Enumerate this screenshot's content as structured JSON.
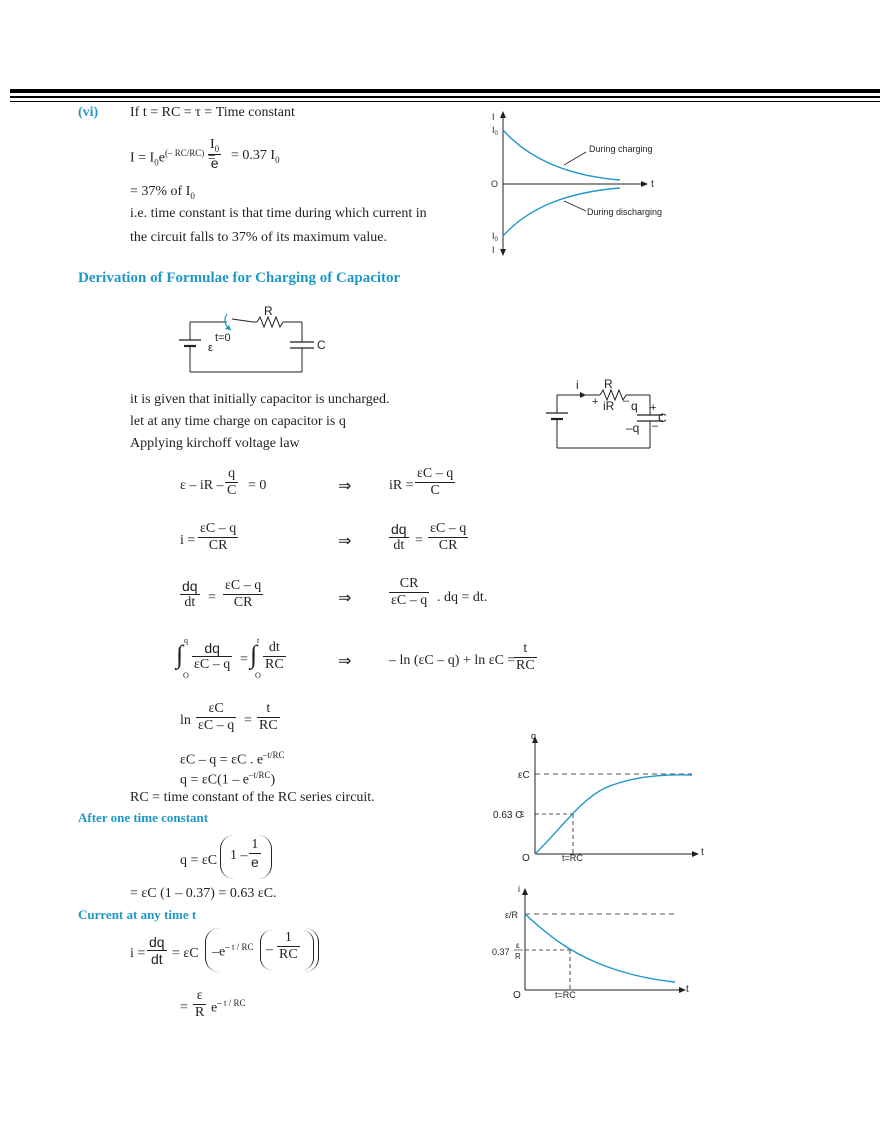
{
  "colors": {
    "accent": "#1f97c9",
    "text": "#231f20",
    "curve": "#1f97c9"
  },
  "section_vi": {
    "label": "(vi)",
    "line1": "If t = RC = τ = Time constant",
    "eq_lhs": "I = I",
    "eq_sub0": "0",
    "eq_e": "e",
    "eq_exp": "(– RC/RC)",
    "eq_mid": " = ",
    "eq_frac_num": "I",
    "eq_frac_num_sub": "0",
    "eq_frac_den": "e",
    "eq_rhs": "= 0.37 I",
    "eq_rhs_sub": "0",
    "pct": "= 37% of I",
    "pct_sub": "0",
    "expl1": "i.e. time constant is that time during which current in",
    "expl2": "the circuit falls to 37% of its maximum value."
  },
  "graph_top": {
    "axis_i_top": "I",
    "axis_i0_top": "I",
    "axis_i0_top_sub": "0",
    "origin": "O",
    "axis_t": "t",
    "axis_i0_bottom": "I",
    "axis_i0_bottom_sub": "0",
    "axis_i_bottom": "I",
    "label_charging": "During charging",
    "label_discharging": "During discharging"
  },
  "heading": "Derivation of Formulae for Charging of Capacitor",
  "circuit1": {
    "R": "R",
    "t0": "t=0",
    "emf": "ε",
    "C": "C"
  },
  "circuit2": {
    "i": "i",
    "R": "R",
    "iR": "iR",
    "plus1": "+",
    "minus1": "–",
    "q": "q",
    "plus2": "+",
    "minus_q": "–q",
    "minus2": "–",
    "C": "C"
  },
  "intro": {
    "l1": "it is given that initially capacitor is uncharged.",
    "l2": "let at any time charge on capacitor is q",
    "l3": "Applying kirchoff voltage law"
  },
  "eqs": {
    "e1_left": "ε – iR –",
    "e1_num": "q",
    "e1_den": "C",
    "e1_right": "= 0",
    "arrow": "⇒",
    "e1r_left": "iR =",
    "e1r_num": "εC – q",
    "e1r_den": "C",
    "e2_left": "i =",
    "e2_num": "εC – q",
    "e2_den": "CR",
    "e2r_num1": "dq",
    "e2r_den1": "dt",
    "e2r_eq": "=",
    "e2r_num2": "εC – q",
    "e2r_den2": "CR",
    "e3_num1": "dq",
    "e3_den1": "dt",
    "e3_eq": "=",
    "e3_num2": "εC – q",
    "e3_den2": "CR",
    "e3r_num": "CR",
    "e3r_den": "εC – q",
    "e3r_right": ". dq = dt.",
    "e4_ul1": "q",
    "e4_ll1": "O",
    "e4_num1": "dq",
    "e4_den1": "εC – q",
    "e4_eq": "=",
    "e4_ul2": "t",
    "e4_ll2": "O",
    "e4_num2": "dt",
    "e4_den2": "RC",
    "e4r_left": "– ln (εC – q) + ln εC =",
    "e4r_num": "t",
    "e4r_den": "RC",
    "e5_ln": "ln",
    "e5_num1": "εC",
    "e5_den1": "εC – q",
    "e5_eq": "=",
    "e5_num2": "t",
    "e5_den2": "RC",
    "e6_base": "εC – q = εC . e",
    "e6_exp": "–t/RC",
    "e7_base": "q = εC(1 – e",
    "e7_exp": "–t/RC",
    "e7_close": ")",
    "e8": "RC = time constant of the RC series circuit."
  },
  "after": {
    "heading": "After one time constant",
    "left": "q = εC",
    "one": "1 –",
    "num": "1",
    "den": "e",
    "result": "=  εC (1 – 0.37) = 0.63 εC."
  },
  "current": {
    "heading": "Current at any time t",
    "left": "i =",
    "num1": "dq",
    "den1": "dt",
    "mid": "= εC",
    "neg_e": "–e",
    "exp": "– t / RC",
    "minus": "–",
    "num2": "1",
    "den2": "RC",
    "eq": "=",
    "num3": "ε",
    "den3": "R",
    "e": "e",
    "exp2": "– t / RC"
  },
  "graph_q": {
    "axis_y": "q",
    "eC": "εC",
    "p63": "0.63 C",
    "p63_eps": "ε",
    "origin": "O",
    "tRC": "t=RC",
    "axis_t": "t"
  },
  "graph_i": {
    "axis_y": "i",
    "eR": "ε/R",
    "p37": "0.37",
    "p37_num": "ε",
    "p37_den": "R",
    "origin": "O",
    "tRC": "t=RC",
    "axis_t": "t"
  }
}
